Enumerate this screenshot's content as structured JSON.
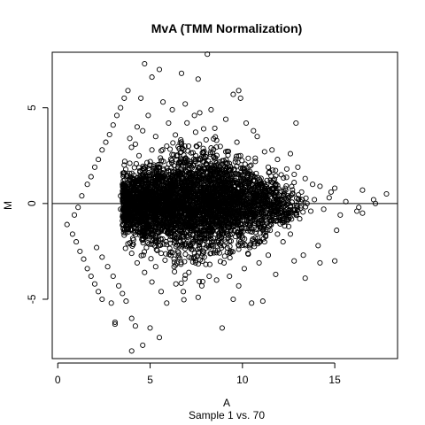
{
  "chart_data": {
    "type": "scatter",
    "title": "MvA (TMM Normalization)",
    "xlabel": "A",
    "xsublabel": "Sample 1 vs. 70",
    "ylabel": "M",
    "xlim": [
      -0.3,
      18.4
    ],
    "ylim": [
      -8.1,
      7.9
    ],
    "xticks": [
      0,
      5,
      10,
      15
    ],
    "yticks": [
      -5,
      0,
      5
    ],
    "ytick_labels": [
      "-5",
      "0",
      "5"
    ],
    "hline_y": 0,
    "marker": "open-circle",
    "point_color": "#000000",
    "grid": false,
    "legend": "none",
    "density_summary": {
      "dense_core_x_range": [
        3.5,
        13.5
      ],
      "dense_core_y_range": [
        -2,
        2
      ]
    },
    "points": [
      [
        0.5,
        -1.1
      ],
      [
        0.8,
        -1.6
      ],
      [
        1.0,
        -2.0
      ],
      [
        1.2,
        -2.5
      ],
      [
        1.4,
        -2.9
      ],
      [
        1.6,
        -3.4
      ],
      [
        1.8,
        -3.8
      ],
      [
        2.0,
        -4.2
      ],
      [
        2.2,
        -4.6
      ],
      [
        2.4,
        -5.0
      ],
      [
        0.9,
        -0.6
      ],
      [
        1.1,
        -0.2
      ],
      [
        1.3,
        0.4
      ],
      [
        1.6,
        1.0
      ],
      [
        1.8,
        1.4
      ],
      [
        2.0,
        1.9
      ],
      [
        2.2,
        2.3
      ],
      [
        2.4,
        2.8
      ],
      [
        2.6,
        3.2
      ],
      [
        2.8,
        3.6
      ],
      [
        3.0,
        4.1
      ],
      [
        3.2,
        4.6
      ],
      [
        3.4,
        5.0
      ],
      [
        3.6,
        5.5
      ],
      [
        3.8,
        5.9
      ],
      [
        2.1,
        -2.3
      ],
      [
        2.4,
        -2.8
      ],
      [
        2.7,
        -3.3
      ],
      [
        3.0,
        -3.8
      ],
      [
        3.3,
        -4.3
      ],
      [
        3.5,
        -4.7
      ],
      [
        3.7,
        -5.1
      ],
      [
        2.9,
        -5.2
      ],
      [
        3.1,
        -6.2
      ],
      [
        3.1,
        -6.3
      ],
      [
        4.0,
        -7.7
      ],
      [
        4.6,
        -7.4
      ],
      [
        4.0,
        -6.0
      ],
      [
        4.2,
        -6.4
      ],
      [
        5.0,
        -6.5
      ],
      [
        5.5,
        -7.0
      ],
      [
        8.9,
        -6.5
      ],
      [
        7.6,
        -4.9
      ],
      [
        9.5,
        -5.0
      ],
      [
        10.5,
        -5.2
      ],
      [
        11.1,
        -5.1
      ],
      [
        9.3,
        -3.8
      ],
      [
        11.8,
        -3.7
      ],
      [
        13.4,
        -3.9
      ],
      [
        12.8,
        -3.0
      ],
      [
        14.2,
        -3.1
      ],
      [
        15.0,
        -3.0
      ],
      [
        13.3,
        -2.7
      ],
      [
        14.1,
        -2.2
      ],
      [
        15.1,
        -1.4
      ],
      [
        15.3,
        -0.6
      ],
      [
        16.2,
        -0.4
      ],
      [
        16.5,
        -0.5
      ],
      [
        16.3,
        -0.2
      ],
      [
        17.1,
        0.2
      ],
      [
        17.8,
        0.5
      ],
      [
        17.2,
        0.0
      ],
      [
        16.5,
        0.7
      ],
      [
        15.0,
        0.8
      ],
      [
        14.8,
        0.6
      ],
      [
        13.8,
        1.0
      ],
      [
        13.4,
        1.3
      ],
      [
        14.2,
        0.9
      ],
      [
        12.6,
        2.6
      ],
      [
        12.9,
        4.2
      ],
      [
        11.6,
        2.8
      ],
      [
        10.6,
        3.8
      ],
      [
        9.9,
        5.5
      ],
      [
        9.5,
        5.7
      ],
      [
        9.8,
        5.9
      ],
      [
        8.1,
        7.8
      ],
      [
        7.6,
        6.5
      ],
      [
        6.7,
        6.8
      ],
      [
        5.5,
        7.0
      ],
      [
        4.7,
        7.3
      ],
      [
        5.1,
        6.6
      ],
      [
        4.5,
        5.5
      ],
      [
        5.7,
        5.3
      ],
      [
        6.2,
        4.9
      ],
      [
        6.9,
        5.2
      ],
      [
        7.4,
        4.6
      ],
      [
        8.3,
        4.9
      ],
      [
        9.1,
        4.4
      ],
      [
        10.2,
        4.2
      ],
      [
        10.8,
        3.5
      ],
      [
        6.0,
        4.2
      ],
      [
        4.9,
        4.6
      ],
      [
        4.3,
        4.0
      ],
      [
        3.9,
        3.4
      ],
      [
        4.2,
        3.1
      ],
      [
        4.6,
        3.8
      ],
      [
        5.3,
        3.5
      ],
      [
        7.9,
        3.9
      ],
      [
        8.6,
        3.3
      ],
      [
        9.7,
        3.2
      ],
      [
        11.2,
        2.7
      ],
      [
        11.9,
        2.3
      ],
      [
        12.4,
        1.8
      ],
      [
        13.0,
        1.9
      ],
      [
        12.2,
        -2.0
      ],
      [
        12.6,
        -1.6
      ],
      [
        11.4,
        -2.7
      ],
      [
        10.9,
        -3.1
      ],
      [
        10.1,
        -3.4
      ],
      [
        9.0,
        -3.1
      ],
      [
        8.2,
        -3.8
      ],
      [
        7.1,
        -3.6
      ],
      [
        6.4,
        -4.2
      ],
      [
        5.6,
        -4.6
      ],
      [
        5.1,
        -4.1
      ],
      [
        4.7,
        -3.6
      ],
      [
        4.3,
        -3.1
      ],
      [
        4.0,
        -2.6
      ],
      [
        3.8,
        -2.1
      ],
      [
        6.8,
        -4.6
      ],
      [
        7.8,
        -4.3
      ],
      [
        8.6,
        -4.0
      ],
      [
        9.8,
        -4.3
      ],
      [
        5.9,
        -5.2
      ],
      [
        5.3,
        -3.3
      ],
      [
        6.3,
        -2.9
      ],
      [
        7.4,
        -2.8
      ],
      [
        8.3,
        -2.6
      ],
      [
        9.4,
        -2.5
      ],
      [
        10.4,
        -2.3
      ],
      [
        11.2,
        -2.0
      ],
      [
        11.9,
        -1.6
      ],
      [
        12.5,
        -1.2
      ],
      [
        13.1,
        -0.8
      ],
      [
        13.7,
        -0.4
      ],
      [
        14.4,
        -0.3
      ],
      [
        15.6,
        0.1
      ],
      [
        14.7,
        0.3
      ],
      [
        13.9,
        0.2
      ],
      [
        13.2,
        0.6
      ],
      [
        12.8,
        1.1
      ],
      [
        12.1,
        1.5
      ],
      [
        11.4,
        1.9
      ],
      [
        10.7,
        2.2
      ],
      [
        9.9,
        2.5
      ],
      [
        9.1,
        2.7
      ],
      [
        8.3,
        2.9
      ],
      [
        7.5,
        3.0
      ],
      [
        6.7,
        3.1
      ],
      [
        5.9,
        3.0
      ],
      [
        5.1,
        2.8
      ],
      [
        4.4,
        2.5
      ],
      [
        3.9,
        2.1
      ],
      [
        3.6,
        1.6
      ],
      [
        3.5,
        1.0
      ],
      [
        3.4,
        0.4
      ],
      [
        3.4,
        -0.3
      ],
      [
        3.5,
        -0.9
      ],
      [
        3.6,
        -1.4
      ],
      [
        4.1,
        -1.9
      ],
      [
        4.8,
        -2.3
      ],
      [
        5.6,
        -2.6
      ],
      [
        6.5,
        -2.5
      ],
      [
        7.3,
        -2.4
      ],
      [
        8.2,
        -2.3
      ],
      [
        9.0,
        -2.2
      ],
      [
        9.9,
        -2.0
      ],
      [
        10.7,
        -1.8
      ],
      [
        11.5,
        -1.4
      ],
      [
        12.2,
        -0.9
      ],
      [
        12.9,
        -0.5
      ],
      [
        13.5,
        0.0
      ]
    ]
  }
}
